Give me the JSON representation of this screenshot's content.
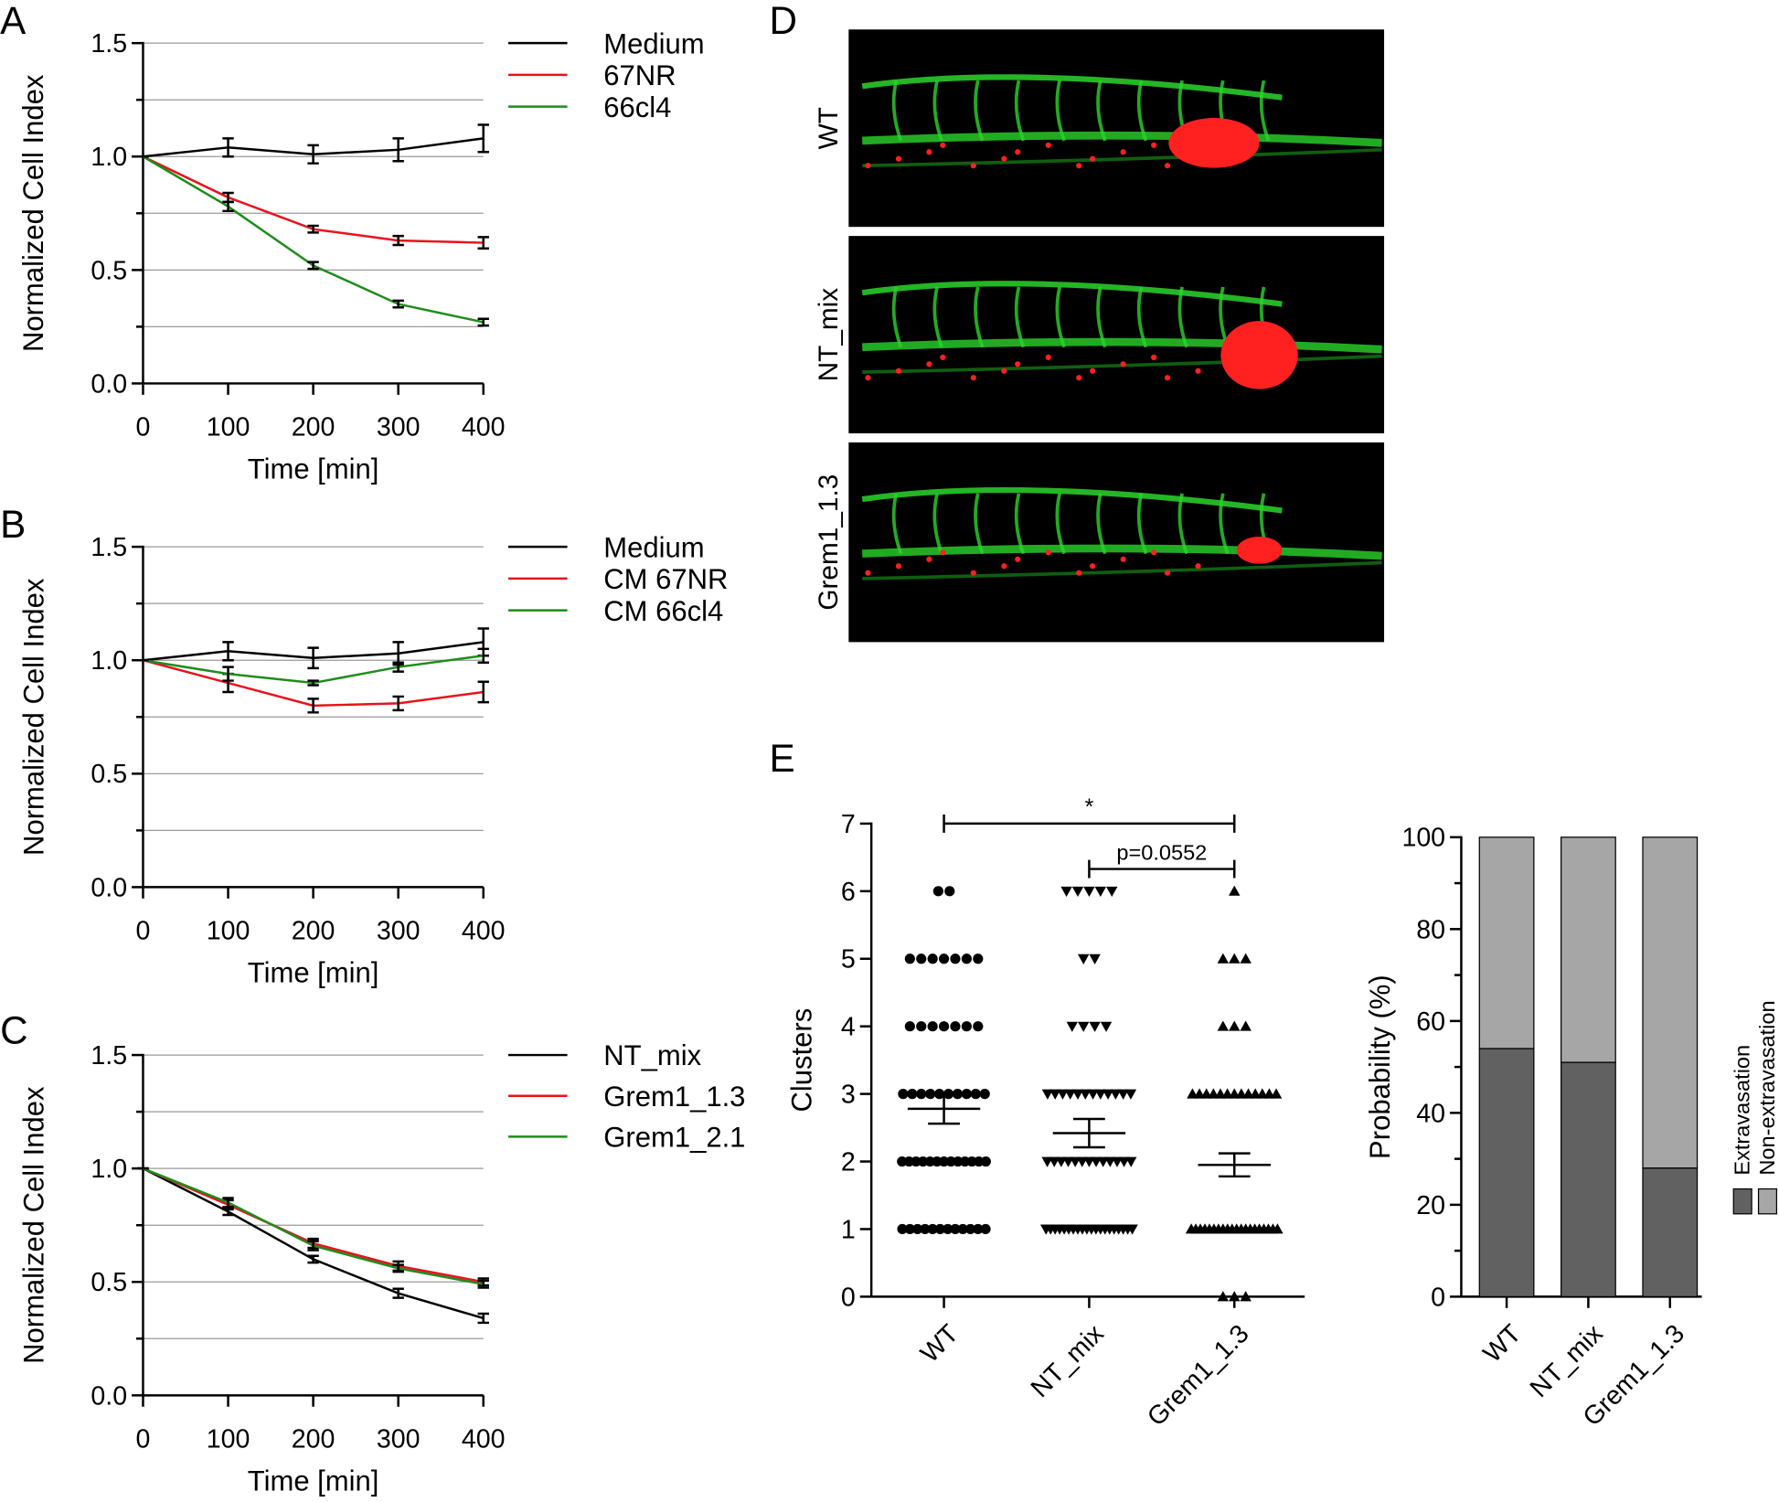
{
  "chart_data": [
    {
      "type": "line",
      "panel": "A",
      "ylabel": "Normalized Cell Index",
      "xlabel": "Time [min]",
      "x": [
        0,
        100,
        200,
        300,
        400
      ],
      "xlim": [
        0,
        400
      ],
      "xticks": [
        0,
        100,
        200,
        300,
        400
      ],
      "ylim": [
        0,
        1.5
      ],
      "yticks": [
        {
          "value": 0,
          "label": "0.0"
        },
        {
          "value": 0.5,
          "label": "0.5"
        },
        {
          "value": 1,
          "label": "1.0"
        },
        {
          "value": 1.5,
          "label": "1.5"
        }
      ],
      "minor_yticks": [
        0.25,
        0.75,
        1.25
      ],
      "grid": true,
      "series": [
        {
          "name": "Medium",
          "color": "#000000",
          "values": [
            1.0,
            1.04,
            1.01,
            1.03,
            1.08
          ],
          "errors": [
            0,
            0.04,
            0.04,
            0.05,
            0.06
          ]
        },
        {
          "name": "67NR",
          "color": "#e8121c",
          "values": [
            1.0,
            0.82,
            0.68,
            0.63,
            0.62
          ],
          "errors": [
            0,
            0.02,
            0.015,
            0.02,
            0.025
          ]
        },
        {
          "name": "66cl4",
          "color": "#1f8c1a",
          "values": [
            1.0,
            0.78,
            0.52,
            0.35,
            0.27
          ],
          "errors": [
            0,
            0.02,
            0.015,
            0.015,
            0.015
          ]
        }
      ]
    },
    {
      "type": "line",
      "panel": "B",
      "ylabel": "Normalized Cell Index",
      "xlabel": "Time [min]",
      "x": [
        0,
        100,
        200,
        300,
        400
      ],
      "xlim": [
        0,
        400
      ],
      "xticks": [
        0,
        100,
        200,
        300,
        400
      ],
      "ylim": [
        0,
        1.5
      ],
      "yticks": [
        {
          "value": 0,
          "label": "0.0"
        },
        {
          "value": 0.5,
          "label": "0.5"
        },
        {
          "value": 1,
          "label": "1.0"
        },
        {
          "value": 1.5,
          "label": "1.5"
        }
      ],
      "minor_yticks": [
        0.25,
        0.75,
        1.25
      ],
      "grid": true,
      "series": [
        {
          "name": "Medium",
          "color": "#000000",
          "values": [
            1.0,
            1.04,
            1.01,
            1.03,
            1.08
          ],
          "errors": [
            0,
            0.04,
            0.045,
            0.05,
            0.06
          ]
        },
        {
          "name": "CM 67NR",
          "color": "#e8121c",
          "values": [
            1.0,
            0.9,
            0.8,
            0.81,
            0.86
          ],
          "errors": [
            0,
            0.04,
            0.03,
            0.03,
            0.045
          ]
        },
        {
          "name": "CM 66cl4",
          "color": "#1f8c1a",
          "values": [
            1.0,
            0.94,
            0.9,
            0.97,
            1.02
          ],
          "errors": [
            0,
            0.03,
            0.01,
            0.02,
            0.03
          ]
        }
      ]
    },
    {
      "type": "line",
      "panel": "C",
      "ylabel": "Normalized Cell Index",
      "xlabel": "Time [min]",
      "x": [
        0,
        100,
        200,
        300,
        400
      ],
      "xlim": [
        0,
        400
      ],
      "xticks": [
        0,
        100,
        200,
        300,
        400
      ],
      "ylim": [
        0,
        1.5
      ],
      "yticks": [
        {
          "value": 0,
          "label": "0.0"
        },
        {
          "value": 0.5,
          "label": "0.5"
        },
        {
          "value": 1,
          "label": "1.0"
        },
        {
          "value": 1.5,
          "label": "1.5"
        }
      ],
      "minor_yticks": [
        0.25,
        0.75,
        1.25
      ],
      "grid": true,
      "series": [
        {
          "name": "NT_mix",
          "color": "#000000",
          "values": [
            1.0,
            0.81,
            0.6,
            0.45,
            0.34
          ],
          "errors": [
            0,
            0.015,
            0.015,
            0.02,
            0.02
          ]
        },
        {
          "name": "Grem1_1.3",
          "color": "#e8121c",
          "values": [
            1.0,
            0.84,
            0.67,
            0.57,
            0.5
          ],
          "errors": [
            0,
            0.02,
            0.02,
            0.02,
            0.015
          ]
        },
        {
          "name": "Grem1_2.1",
          "color": "#1f8c1a",
          "values": [
            1.0,
            0.85,
            0.66,
            0.56,
            0.49
          ],
          "errors": [
            0,
            0.02,
            0.02,
            0.015,
            0.015
          ]
        }
      ]
    },
    {
      "type": "dot",
      "panel": "E",
      "ylabel": "Clusters",
      "categories": [
        "WT",
        "NT_mix",
        "Grem1_1.3"
      ],
      "markers": [
        "circle",
        "triangle-down",
        "triangle-up"
      ],
      "color": "#000000",
      "levels": [
        0,
        1,
        2,
        3,
        4,
        5,
        6
      ],
      "counts": [
        [
          0,
          12,
          13,
          10,
          7,
          7,
          2
        ],
        [
          0,
          20,
          13,
          12,
          4,
          2,
          5
        ],
        [
          3,
          20,
          0,
          13,
          3,
          3,
          1
        ]
      ],
      "means": [
        2.78,
        2.42,
        1.95
      ],
      "sems": [
        0.22,
        0.21,
        0.17
      ],
      "ylim": [
        0,
        7
      ],
      "yticks": [
        0,
        1,
        2,
        3,
        4,
        5,
        6,
        7
      ],
      "grid": false,
      "comparisons": [
        {
          "label": "*",
          "from": "WT",
          "to": "Grem1_1.3"
        },
        {
          "label": "p=0.0552",
          "from": "NT_mix",
          "to": "Grem1_1.3"
        }
      ]
    },
    {
      "type": "stacked_bar",
      "ylabel": "Probability (%)",
      "categories": [
        "WT",
        "NT_mix",
        "Grem1_1.3"
      ],
      "ylim": [
        0,
        100
      ],
      "yticks": [
        0,
        20,
        40,
        60,
        80,
        100
      ],
      "minor_yticks": [
        10,
        30,
        50,
        70,
        90
      ],
      "grid": false,
      "series": [
        {
          "name": "Extravasation",
          "color": "#616161",
          "values": [
            54,
            51,
            28
          ]
        },
        {
          "name": "Non-extravasation",
          "color": "#a6a6a6",
          "values": [
            46,
            49,
            72
          ]
        }
      ]
    }
  ],
  "images": {
    "panel": "D",
    "labels": [
      "WT",
      "NT_mix",
      "Grem1_1.3"
    ]
  }
}
